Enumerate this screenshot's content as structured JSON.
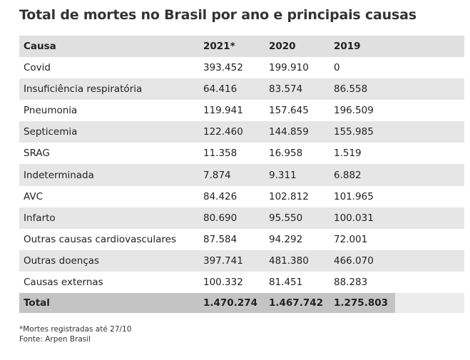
{
  "title": "Total de mortes no Brasil por ano e principais causas",
  "chart_data": {
    "type": "table",
    "title": "Total de mortes no Brasil por ano e principais causas",
    "columns": [
      "Causa",
      "2021*",
      "2020",
      "2019"
    ],
    "rows": [
      [
        "Covid",
        "393.452",
        "199.910",
        "0"
      ],
      [
        "Insuficiência respiratória",
        "64.416",
        "83.574",
        "86.558"
      ],
      [
        "Pneumonia",
        "119.941",
        "157.645",
        "196.509"
      ],
      [
        "Septicemia",
        "122.460",
        "144.859",
        "155.985"
      ],
      [
        "SRAG",
        "11.358",
        "16.958",
        "1.519"
      ],
      [
        "Indeterminada",
        "7.874",
        "9.311",
        "6.882"
      ],
      [
        "AVC",
        "84.426",
        "102.812",
        "101.965"
      ],
      [
        "Infarto",
        "80.690",
        "95.550",
        "100.031"
      ],
      [
        "Outras causas cardiovasculares",
        "87.584",
        "94.292",
        "72.001"
      ],
      [
        "Outras doenças",
        "397.741",
        "481.380",
        "466.070"
      ],
      [
        "Causas externas",
        "100.332",
        "81.451",
        "88.283"
      ]
    ],
    "total": [
      "Total",
      "1.470.274",
      "1.467.742",
      "1.275.803"
    ]
  },
  "notes": {
    "footnote": "*Mortes registradas até 27/10",
    "source": "Fonte: Arpen Brasil"
  },
  "colors": {
    "header_bg": "#e0e0e0",
    "stripe_bg": "#e6e6e6",
    "total_bg": "#c4c4c4",
    "text": "#222222"
  }
}
